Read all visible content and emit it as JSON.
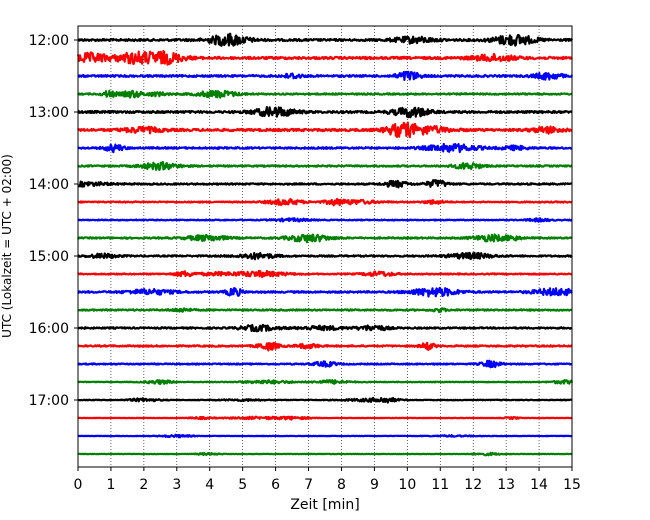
{
  "chart_data": {
    "type": "line",
    "title": "",
    "xlabel": "Zeit  [min]",
    "ylabel": "UTC (Lokalzeit = UTC + 02:00)",
    "xlim": [
      0,
      15
    ],
    "x_ticks": [
      "0",
      "1",
      "2",
      "3",
      "4",
      "5",
      "6",
      "7",
      "8",
      "9",
      "10",
      "11",
      "12",
      "13",
      "14",
      "15"
    ],
    "y_ticks": [
      "12:00",
      "13:00",
      "14:00",
      "15:00",
      "16:00",
      "17:00"
    ],
    "grid": "vertical dotted at each minute",
    "colors": [
      "#000000",
      "#ff0000",
      "#0000ff",
      "#008000"
    ],
    "traces": [
      {
        "start": "12:00",
        "color": "#000000",
        "amp": 4.5
      },
      {
        "start": "12:15",
        "color": "#ff0000",
        "amp": 5.0
      },
      {
        "start": "12:30",
        "color": "#0000ff",
        "amp": 4.0
      },
      {
        "start": "12:45",
        "color": "#008000",
        "amp": 3.0
      },
      {
        "start": "13:00",
        "color": "#000000",
        "amp": 4.5
      },
      {
        "start": "13:15",
        "color": "#ff0000",
        "amp": 5.0
      },
      {
        "start": "13:30",
        "color": "#0000ff",
        "amp": 3.5
      },
      {
        "start": "13:45",
        "color": "#008000",
        "amp": 3.0
      },
      {
        "start": "14:00",
        "color": "#000000",
        "amp": 3.0
      },
      {
        "start": "14:15",
        "color": "#ff0000",
        "amp": 2.5
      },
      {
        "start": "14:30",
        "color": "#0000ff",
        "amp": 2.0
      },
      {
        "start": "14:45",
        "color": "#008000",
        "amp": 3.0
      },
      {
        "start": "15:00",
        "color": "#000000",
        "amp": 3.0
      },
      {
        "start": "15:15",
        "color": "#ff0000",
        "amp": 2.5
      },
      {
        "start": "15:30",
        "color": "#0000ff",
        "amp": 3.5
      },
      {
        "start": "15:45",
        "color": "#008000",
        "amp": 3.0
      },
      {
        "start": "16:00",
        "color": "#000000",
        "amp": 3.0
      },
      {
        "start": "16:15",
        "color": "#ff0000",
        "amp": 3.0
      },
      {
        "start": "16:30",
        "color": "#0000ff",
        "amp": 2.5
      },
      {
        "start": "16:45",
        "color": "#008000",
        "amp": 1.5
      },
      {
        "start": "17:00",
        "color": "#000000",
        "amp": 1.5
      },
      {
        "start": "17:15",
        "color": "#ff0000",
        "amp": 1.0
      },
      {
        "start": "17:30",
        "color": "#0000ff",
        "amp": 1.0
      },
      {
        "start": "17:45",
        "color": "#008000",
        "amp": 1.0
      }
    ]
  }
}
